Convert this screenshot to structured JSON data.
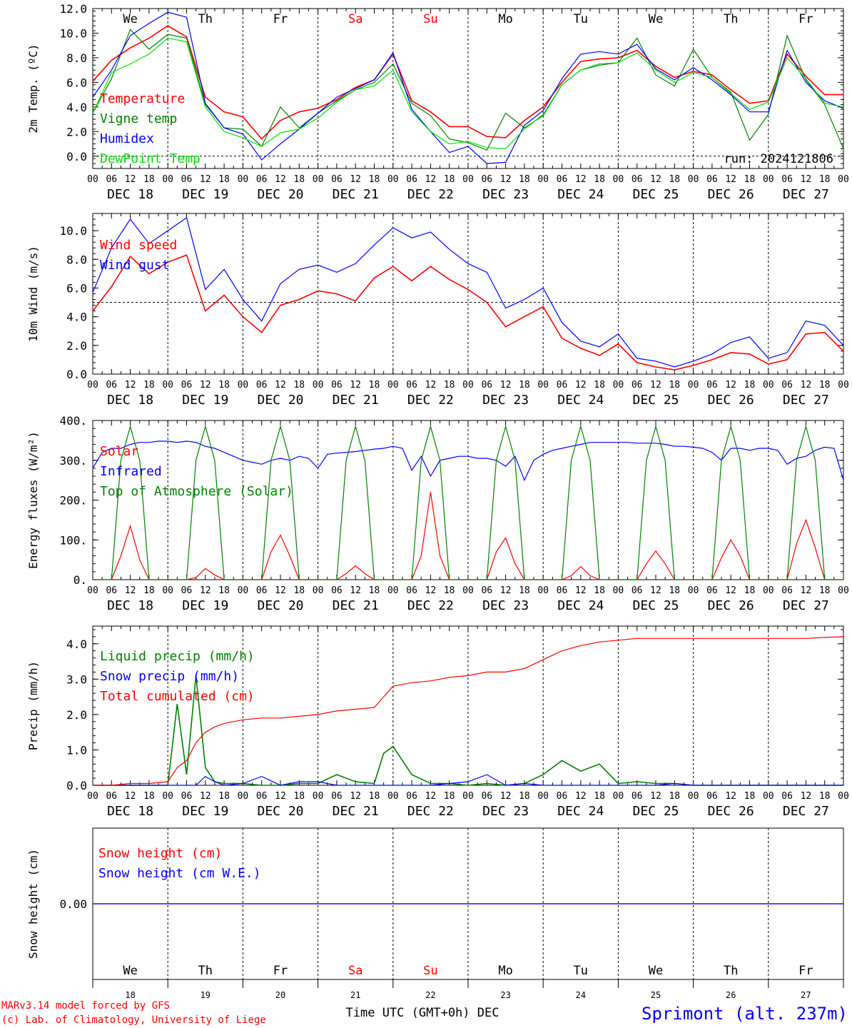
{
  "footer": {
    "model": "MARv3.14 model forced by GFS",
    "credit": "(c) Lab. of Climatology, University of Liege",
    "xlabel": "Time UTC (GMT+0h) DEC",
    "station": "Sprimont (alt. 237m)"
  },
  "time_axis": {
    "hour_labels": [
      "00",
      "06",
      "12",
      "18"
    ],
    "dates": [
      "DEC 18",
      "DEC 19",
      "DEC 20",
      "DEC 21",
      "DEC 22",
      "DEC 23",
      "DEC 24",
      "DEC 25",
      "DEC 26",
      "DEC 27"
    ],
    "weekdays": [
      "We",
      "Th",
      "Fr",
      "Sa",
      "Su",
      "Mo",
      "Tu",
      "We",
      "Th",
      "Fr"
    ],
    "day_numbers": [
      "18",
      "19",
      "20",
      "21",
      "22",
      "23",
      "24",
      "25",
      "26",
      "27"
    ],
    "weekend_color": "#ff0000",
    "weekday_color": "#000000"
  },
  "colors": {
    "red": "#ff0000",
    "green": "#008000",
    "blue": "#0000ff",
    "lightgreen": "#00e000",
    "frame": "#000000"
  },
  "chart_data": [
    {
      "type": "line",
      "id": "temp",
      "ylabel": "2m Temp. (ºC)",
      "ylim": [
        -1.0,
        12.0
      ],
      "yticks": [
        "12.0",
        "10.0",
        "8.0",
        "6.0",
        "4.0",
        "2.0",
        "0.0"
      ],
      "ytick_values": [
        12,
        10,
        8,
        6,
        4,
        2,
        0
      ],
      "ref_line": 0,
      "run_label": "run: 2024121806",
      "x_hours": [
        0,
        6,
        12,
        18,
        24,
        30,
        36,
        42,
        48,
        54,
        60,
        66,
        72,
        78,
        84,
        90,
        96,
        102,
        108,
        114,
        120,
        126,
        132,
        138,
        144,
        150,
        156,
        162,
        168,
        174,
        180,
        186,
        192,
        198,
        204,
        210,
        216,
        222,
        228,
        234,
        240
      ],
      "series": [
        {
          "name": "Temperature",
          "color": "#ff0000",
          "values": [
            6.1,
            7.8,
            8.8,
            9.6,
            10.6,
            9.7,
            4.8,
            3.6,
            3.2,
            1.4,
            2.9,
            3.6,
            3.9,
            4.6,
            5.6,
            6.2,
            8.3,
            4.5,
            3.6,
            2.4,
            2.4,
            1.6,
            1.5,
            2.9,
            4.0,
            6.0,
            7.7,
            7.9,
            8.0,
            8.6,
            7.3,
            6.4,
            6.9,
            6.6,
            5.4,
            4.3,
            4.5,
            8.3,
            6.5,
            5.0,
            5.0
          ]
        },
        {
          "name": "Vigne temp",
          "color": "#008000",
          "values": [
            3.5,
            6.3,
            10.3,
            8.7,
            9.9,
            9.6,
            4.2,
            2.3,
            2.2,
            0.8,
            4.0,
            2.3,
            3.5,
            4.5,
            5.4,
            6.0,
            7.5,
            4.3,
            3.3,
            1.4,
            1.1,
            0.5,
            3.5,
            2.3,
            3.3,
            5.8,
            7.0,
            7.4,
            7.6,
            9.6,
            6.6,
            5.7,
            8.7,
            6.4,
            5.2,
            1.3,
            3.4,
            9.8,
            6.2,
            4.2,
            0.6
          ]
        },
        {
          "name": "Humidex",
          "color": "#0000ff",
          "values": [
            4.8,
            7.0,
            9.8,
            10.8,
            11.7,
            11.3,
            4.3,
            2.3,
            1.8,
            -0.3,
            1.0,
            2.2,
            3.5,
            4.8,
            5.5,
            6.2,
            8.4,
            3.8,
            2.0,
            0.3,
            0.8,
            -0.6,
            -0.5,
            2.5,
            3.7,
            6.3,
            8.3,
            8.5,
            8.3,
            9.1,
            7.1,
            6.2,
            7.2,
            6.2,
            5.0,
            3.6,
            3.6,
            8.6,
            6.0,
            4.5,
            3.9
          ]
        },
        {
          "name": "DewPoint Temp",
          "color": "#00e000",
          "values": [
            3.5,
            6.8,
            7.5,
            8.3,
            9.6,
            9.3,
            4.0,
            2.0,
            1.5,
            0.8,
            1.9,
            2.2,
            3.1,
            4.4,
            5.4,
            5.7,
            7.0,
            3.6,
            2.0,
            1.0,
            1.2,
            0.7,
            0.6,
            2.2,
            3.4,
            5.8,
            7.0,
            7.5,
            7.6,
            8.4,
            7.0,
            6.0,
            6.8,
            6.4,
            5.1,
            3.8,
            4.4,
            8.0,
            6.3,
            4.3,
            4.0
          ]
        }
      ]
    },
    {
      "type": "line",
      "id": "wind",
      "ylabel": "10m Wind (m/s)",
      "ylim": [
        0.0,
        11.2
      ],
      "yticks": [
        "10.0",
        "8.0",
        "6.0",
        "4.0",
        "2.0",
        "0.0"
      ],
      "ytick_values": [
        10,
        8,
        6,
        4,
        2,
        0
      ],
      "ref_line": 5,
      "x_hours": [
        0,
        6,
        12,
        18,
        24,
        30,
        36,
        42,
        48,
        54,
        60,
        66,
        72,
        78,
        84,
        90,
        96,
        102,
        108,
        114,
        120,
        126,
        132,
        138,
        144,
        150,
        156,
        162,
        168,
        174,
        180,
        186,
        192,
        198,
        204,
        210,
        216,
        222,
        228,
        234,
        240
      ],
      "series": [
        {
          "name": "Wind speed",
          "color": "#ff0000",
          "values": [
            4.4,
            6.1,
            8.2,
            7.0,
            7.8,
            8.3,
            4.4,
            5.5,
            4.0,
            2.9,
            4.8,
            5.2,
            5.8,
            5.6,
            5.1,
            6.7,
            7.5,
            6.5,
            7.5,
            6.6,
            5.9,
            5.0,
            3.3,
            4.0,
            4.7,
            2.5,
            1.8,
            1.3,
            2.1,
            0.8,
            0.5,
            0.3,
            0.6,
            1.0,
            1.5,
            1.4,
            0.7,
            1.0,
            2.8,
            2.9,
            1.6
          ]
        },
        {
          "name": "Wind gust",
          "color": "#0000ff",
          "values": [
            5.7,
            8.8,
            10.8,
            9.1,
            10.0,
            10.9,
            5.9,
            7.3,
            5.2,
            3.7,
            6.3,
            7.3,
            7.6,
            7.1,
            7.7,
            9.0,
            10.2,
            9.5,
            9.9,
            8.7,
            7.7,
            7.1,
            4.6,
            5.2,
            6.0,
            3.6,
            2.3,
            1.9,
            2.8,
            1.1,
            0.9,
            0.5,
            0.9,
            1.4,
            2.2,
            2.6,
            1.1,
            1.5,
            3.7,
            3.4,
            2.0
          ]
        }
      ]
    },
    {
      "type": "line",
      "id": "energy",
      "ylabel": "Energy fluxes (W/m²)",
      "ylim": [
        0,
        400
      ],
      "yticks": [
        "400.",
        "300.",
        "200.",
        "100.",
        "0."
      ],
      "ytick_values": [
        400,
        300,
        200,
        100,
        0
      ],
      "x_hours": [
        0,
        3,
        6,
        9,
        12,
        15,
        18,
        21,
        24,
        27,
        30,
        33,
        36,
        39,
        42,
        45,
        48,
        51,
        54,
        57,
        60,
        63,
        66,
        69,
        72,
        75,
        78,
        81,
        84,
        87,
        90,
        93,
        96,
        99,
        102,
        105,
        108,
        111,
        114,
        117,
        120,
        123,
        126,
        129,
        132,
        135,
        138,
        141,
        144,
        147,
        150,
        153,
        156,
        159,
        162,
        165,
        168,
        171,
        174,
        177,
        180,
        183,
        186,
        189,
        192,
        195,
        198,
        201,
        204,
        207,
        210,
        213,
        216,
        219,
        222,
        225,
        228,
        231,
        234,
        237,
        240
      ],
      "series": [
        {
          "name": "Solar",
          "color": "#ff0000",
          "values": [
            0,
            0,
            0,
            60,
            135,
            50,
            0,
            0,
            0,
            0,
            0,
            5,
            28,
            12,
            0,
            0,
            0,
            0,
            0,
            70,
            112,
            60,
            0,
            0,
            0,
            0,
            0,
            15,
            35,
            15,
            0,
            0,
            0,
            0,
            0,
            60,
            220,
            60,
            0,
            0,
            0,
            0,
            0,
            70,
            105,
            40,
            0,
            0,
            0,
            0,
            0,
            10,
            33,
            10,
            0,
            0,
            0,
            0,
            0,
            40,
            72,
            40,
            0,
            0,
            0,
            0,
            0,
            55,
            100,
            60,
            0,
            0,
            0,
            0,
            0,
            90,
            150,
            80,
            0,
            0,
            0
          ]
        },
        {
          "name": "Infrared",
          "color": "#0000ff",
          "values": [
            280,
            320,
            330,
            330,
            340,
            345,
            345,
            348,
            348,
            345,
            348,
            345,
            335,
            330,
            320,
            310,
            300,
            295,
            290,
            300,
            305,
            300,
            310,
            305,
            280,
            315,
            318,
            320,
            322,
            325,
            328,
            330,
            335,
            330,
            275,
            310,
            260,
            300,
            305,
            310,
            310,
            305,
            305,
            300,
            285,
            310,
            250,
            300,
            315,
            325,
            330,
            335,
            340,
            345,
            345,
            345,
            345,
            345,
            343,
            343,
            343,
            340,
            335,
            335,
            333,
            330,
            320,
            300,
            330,
            330,
            325,
            330,
            330,
            325,
            290,
            305,
            310,
            325,
            333,
            330,
            250
          ]
        },
        {
          "name": "Top of Atmosphere (Solar)",
          "color": "#008000",
          "values": [
            0,
            0,
            0,
            300,
            385,
            300,
            0,
            0,
            0,
            0,
            0,
            300,
            385,
            300,
            0,
            0,
            0,
            0,
            0,
            300,
            385,
            300,
            0,
            0,
            0,
            0,
            0,
            300,
            385,
            300,
            0,
            0,
            0,
            0,
            0,
            300,
            385,
            300,
            0,
            0,
            0,
            0,
            0,
            300,
            385,
            300,
            0,
            0,
            0,
            0,
            0,
            300,
            385,
            300,
            0,
            0,
            0,
            0,
            0,
            300,
            385,
            300,
            0,
            0,
            0,
            0,
            0,
            300,
            385,
            300,
            0,
            0,
            0,
            0,
            0,
            300,
            385,
            300,
            0,
            0,
            0
          ]
        }
      ]
    },
    {
      "type": "line",
      "id": "precip",
      "ylabel": "Precip (mm/h)",
      "ylim": [
        0.0,
        4.5
      ],
      "yticks": [
        "4.0",
        "3.0",
        "2.0",
        "1.0",
        "0.0"
      ],
      "ytick_values": [
        4,
        3,
        2,
        1,
        0
      ],
      "x_hours": [
        0,
        6,
        12,
        18,
        24,
        27,
        30,
        33,
        36,
        39,
        42,
        48,
        54,
        60,
        66,
        72,
        78,
        84,
        90,
        93,
        96,
        102,
        108,
        114,
        120,
        126,
        132,
        138,
        144,
        150,
        156,
        162,
        168,
        174,
        180,
        186,
        192,
        198,
        204,
        210,
        216,
        222,
        228,
        234,
        240
      ],
      "series": [
        {
          "name": "Liquid precip (mm/h)",
          "color": "#008000",
          "values": [
            0,
            0,
            0,
            0,
            0,
            2.3,
            0.3,
            3.1,
            0.5,
            0.1,
            0.05,
            0.05,
            0,
            0,
            0.05,
            0.05,
            0.3,
            0.1,
            0.05,
            0.9,
            1.1,
            0.3,
            0.05,
            0.05,
            0,
            0.05,
            0,
            0.05,
            0.3,
            0.7,
            0.4,
            0.6,
            0.05,
            0.1,
            0.05,
            0.05,
            0,
            0,
            0,
            0,
            0,
            0,
            0,
            0,
            0
          ]
        },
        {
          "name": "Snow precip (mm/h)",
          "color": "#0000ff",
          "values": [
            0,
            0,
            0,
            0,
            0,
            0,
            0,
            0,
            0.25,
            0.1,
            0,
            0.05,
            0.25,
            0,
            0.1,
            0.1,
            0,
            0,
            0,
            0,
            0,
            0,
            0,
            0.05,
            0.1,
            0.3,
            0,
            0.05,
            0,
            0,
            0,
            0,
            0,
            0,
            0,
            0.05,
            0,
            0,
            0,
            0,
            0,
            0,
            0,
            0,
            0
          ]
        },
        {
          "name": "Total cumulated (cm)",
          "color": "#ff0000",
          "values": [
            0,
            0,
            0.05,
            0.05,
            0.1,
            0.5,
            0.7,
            1.2,
            1.5,
            1.65,
            1.75,
            1.85,
            1.9,
            1.9,
            1.95,
            2.0,
            2.1,
            2.15,
            2.2,
            2.5,
            2.8,
            2.9,
            2.95,
            3.05,
            3.1,
            3.2,
            3.2,
            3.3,
            3.55,
            3.8,
            3.95,
            4.05,
            4.1,
            4.15,
            4.15,
            4.15,
            4.15,
            4.15,
            4.15,
            4.15,
            4.15,
            4.15,
            4.15,
            4.18,
            4.2
          ]
        }
      ]
    },
    {
      "type": "line",
      "id": "snow",
      "ylabel": "Snow height (cm)",
      "ylim": [
        -1,
        1
      ],
      "yticks": [
        "0.00"
      ],
      "ytick_values": [
        0
      ],
      "x_hours": [
        0,
        240
      ],
      "series": [
        {
          "name": "Snow height (cm)",
          "color": "#ff0000",
          "values": [
            0,
            0
          ]
        },
        {
          "name": "Snow height (cm W.E.)",
          "color": "#0000ff",
          "values": [
            0,
            0
          ]
        }
      ]
    }
  ]
}
